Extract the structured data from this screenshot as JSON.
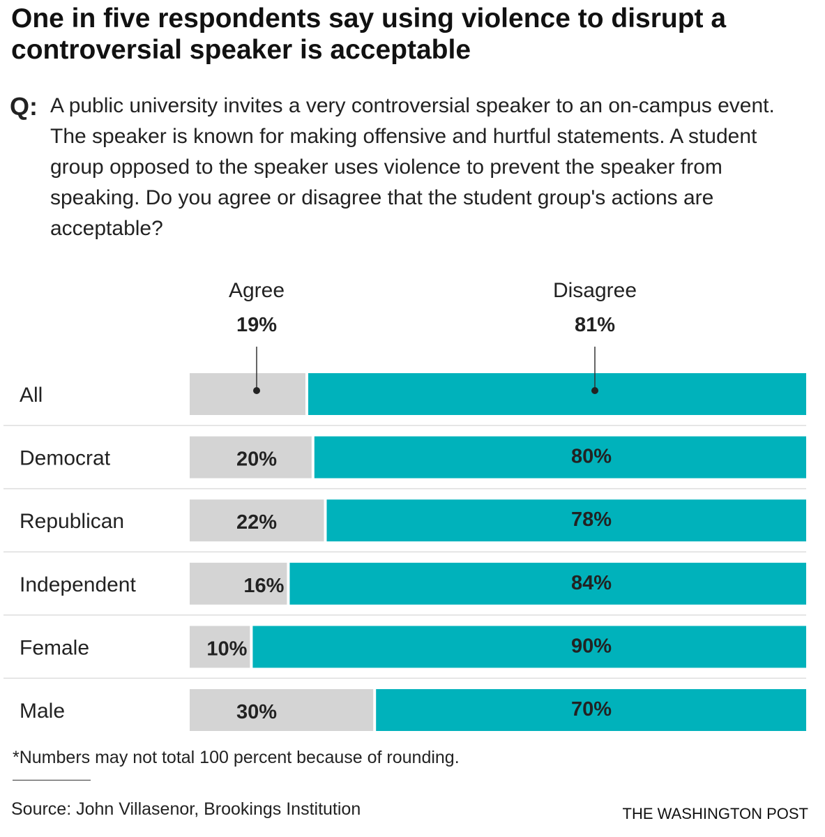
{
  "title": "One in five respondents say using violence to disrupt a controversial speaker is acceptable",
  "question_marker": "Q:",
  "question": "A public university invites a very controversial speaker to an on-campus event. The speaker is known for making offensive and hurtful statements. A student group opposed to the speaker uses violence to prevent the speaker from speaking. Do you agree or disagree that the student group's actions are acceptable?",
  "note": "*Numbers may not total 100 percent because of rounding.",
  "source": "Source: John Villasenor, Brookings Institution",
  "brand": "THE WASHINGTON POST",
  "chart_data": {
    "type": "bar",
    "stacked": true,
    "orientation": "horizontal",
    "categories": [
      "All",
      "Democrat",
      "Republican",
      "Independent",
      "Female",
      "Male"
    ],
    "series": [
      {
        "name": "Agree",
        "values": [
          19,
          20,
          22,
          16,
          10,
          30
        ],
        "labels": [
          "19%",
          "20%",
          "22%",
          "16%",
          "10%",
          "30%"
        ],
        "color": "#d4d4d4"
      },
      {
        "name": "Disagree",
        "values": [
          81,
          80,
          78,
          84,
          90,
          70
        ],
        "labels": [
          "81%",
          "80%",
          "78%",
          "84%",
          "90%",
          "70%"
        ],
        "color": "#00b2bb"
      }
    ],
    "xlim": [
      0,
      100
    ]
  }
}
